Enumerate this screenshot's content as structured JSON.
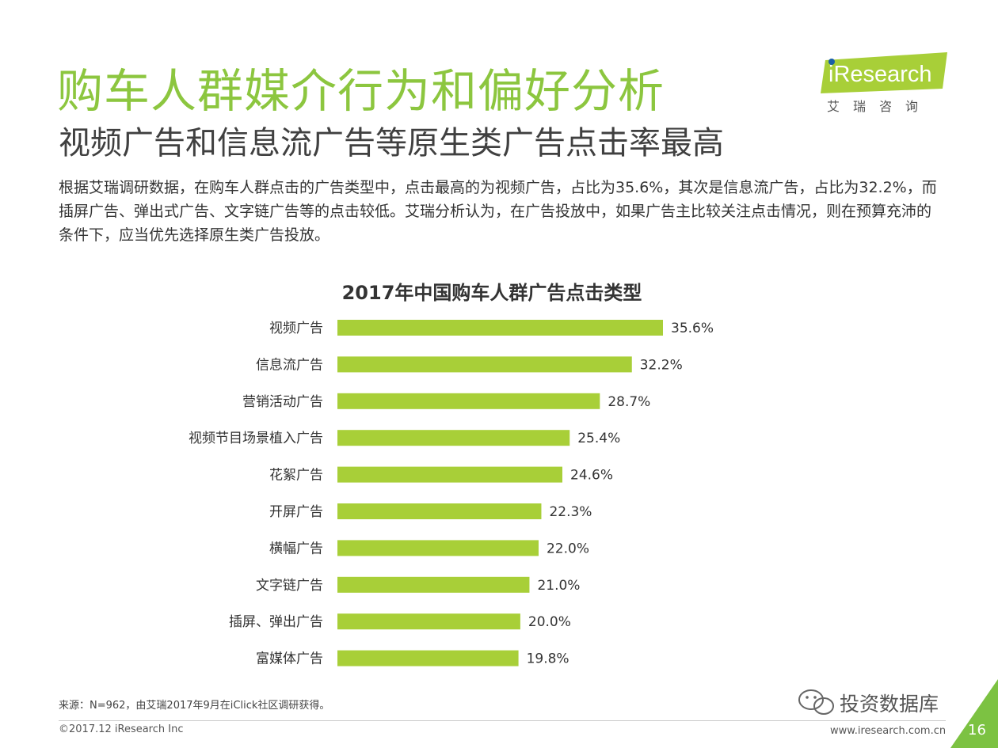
{
  "header": {
    "title": "购车人群媒介行为和偏好分析",
    "subtitle": "视频广告和信息流广告等原生类广告点击率最高",
    "intro": "根据艾瑞调研数据，在购车人群点击的广告类型中，点击最高的为视频广告，占比为35.6%，其次是信息流广告，占比为32.2%，而插屏广告、弹出式广告、文字链广告等的点击较低。艾瑞分析认为，在广告投放中，如果广告主比较关注点击情况，则在预算充沛的条件下，应当优先选择原生类广告投放。"
  },
  "logo": {
    "text": "iResearch",
    "cn": "艾瑞咨询"
  },
  "chart_data": {
    "type": "bar",
    "orientation": "horizontal",
    "title": "2017年中国购车人群广告点击类型",
    "categories": [
      "视频广告",
      "信息流广告",
      "营销活动广告",
      "视频节目场景植入广告",
      "花絮广告",
      "开屏广告",
      "横幅广告",
      "文字链广告",
      "插屏、弹出广告",
      "富媒体广告"
    ],
    "values": [
      35.6,
      32.2,
      28.7,
      25.4,
      24.6,
      22.3,
      22.0,
      21.0,
      20.0,
      19.8
    ],
    "value_labels": [
      "35.6%",
      "32.2%",
      "28.7%",
      "25.4%",
      "24.6%",
      "22.3%",
      "22.0%",
      "21.0%",
      "20.0%",
      "19.8%"
    ],
    "unit": "%",
    "xlim": [
      0,
      100
    ],
    "grid": false,
    "legend": "none",
    "bar_color": "#a8cf38"
  },
  "footer": {
    "source": "来源：N=962，由艾瑞2017年9月在iClick社区调研获得。",
    "copyright": "©2017.12 iResearch Inc",
    "site": "www.iresearch.com.cn",
    "page_number": "16",
    "watermark": "投资数据库"
  },
  "colors": {
    "accent": "#8cc63f",
    "corner": "#7cc242"
  }
}
